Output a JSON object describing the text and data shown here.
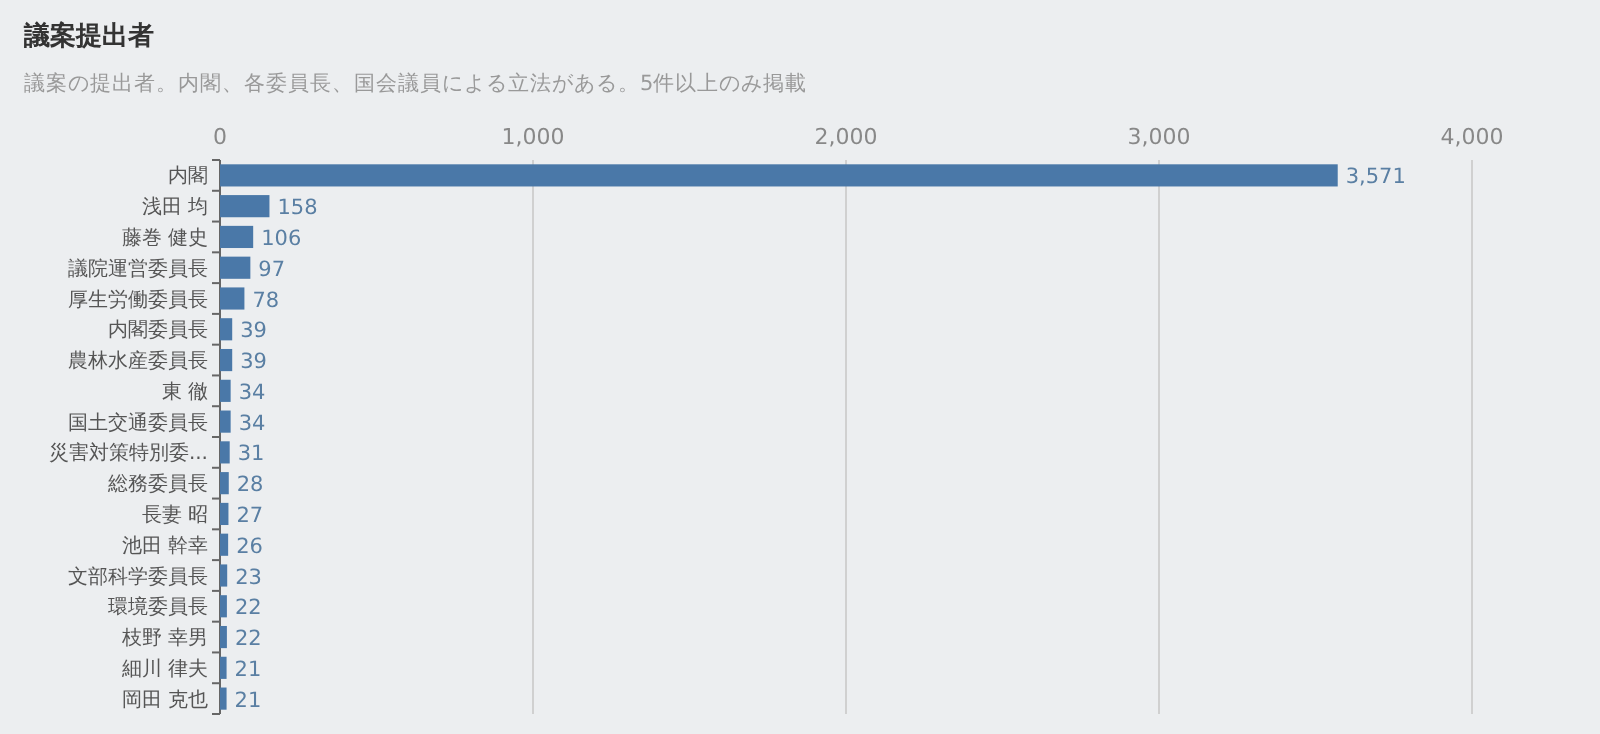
{
  "chart_data": {
    "type": "bar",
    "orientation": "horizontal",
    "title": "議案提出者",
    "subtitle": "議案の提出者。内閣、各委員長、国会議員による立法がある。5件以上のみ掲載",
    "categories": [
      "内閣",
      "浅田 均",
      "藤巻 健史",
      "議院運営委員長",
      "厚生労働委員長",
      "内閣委員長",
      "農林水産委員長",
      "東 徹",
      "国土交通委員長",
      "災害対策特別委...",
      "総務委員長",
      "長妻 昭",
      "池田 幹幸",
      "文部科学委員長",
      "環境委員長",
      "枝野 幸男",
      "細川 律夫",
      "岡田 克也"
    ],
    "values": [
      3571,
      158,
      106,
      97,
      78,
      39,
      39,
      34,
      34,
      31,
      28,
      27,
      26,
      23,
      22,
      22,
      21,
      21
    ],
    "value_labels": [
      "3,571",
      "158",
      "106",
      "97",
      "78",
      "39",
      "39",
      "34",
      "34",
      "31",
      "28",
      "27",
      "26",
      "23",
      "22",
      "22",
      "21",
      "21"
    ],
    "color": "#4a78a8",
    "xlim": [
      0,
      4000
    ],
    "xticks": [
      0,
      {
        "value": 1000,
        "label": "1,000"
      },
      {
        "value": 2000,
        "label": "2,000"
      },
      {
        "value": 3000,
        "label": "3,000"
      },
      {
        "value": 4000,
        "label": "4,000"
      }
    ],
    "grid": "x"
  }
}
